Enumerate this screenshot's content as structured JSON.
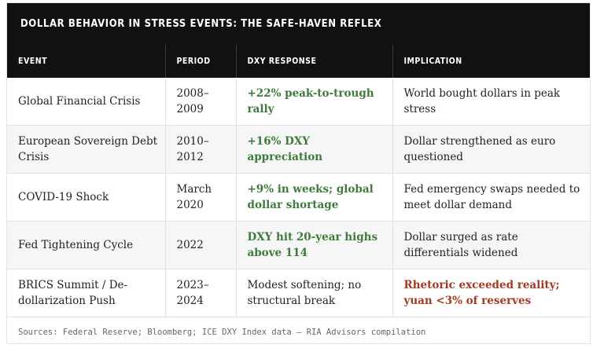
{
  "title": "DOLLAR BEHAVIOR IN STRESS EVENTS: THE SAFE-HAVEN REFLEX",
  "columns": [
    "EVENT",
    "PERIOD",
    "DXY RESPONSE",
    "IMPLICATION"
  ],
  "rows": [
    {
      "event": "Global Financial Crisis",
      "period": "2008–2009",
      "response": "+22% peak-to-trough rally",
      "implication": "World bought dollars in peak stress"
    },
    {
      "event": "European Sovereign Debt Crisis",
      "period": "2010–2012",
      "response": "+16% DXY appreciation",
      "implication": "Dollar strengthened as euro questioned"
    },
    {
      "event": "COVID-19 Shock",
      "period": "March 2020",
      "response": "+9% in weeks; global dollar shortage",
      "implication": "Fed emergency swaps needed to meet dollar demand"
    },
    {
      "event": "Fed Tightening Cycle",
      "period": "2022",
      "response": "DXY hit 20-year highs above 114",
      "implication": "Dollar surged as rate differentials widened"
    },
    {
      "event": "BRICS Summit / De-dollarization Push",
      "period": "2023–2024",
      "response": "Modest softening; no structural break",
      "implication": "Rhetoric exceeded reality; yuan <3% of reserves"
    }
  ],
  "source": "Sources: Federal Reserve; Bloomberg; ICE DXY Index data — RIA Advisors compilation",
  "colors": {
    "header_bg": "#111113",
    "positive": "#3f7a3d",
    "negative": "#a33a22",
    "stripe": "#f6f6f6"
  }
}
